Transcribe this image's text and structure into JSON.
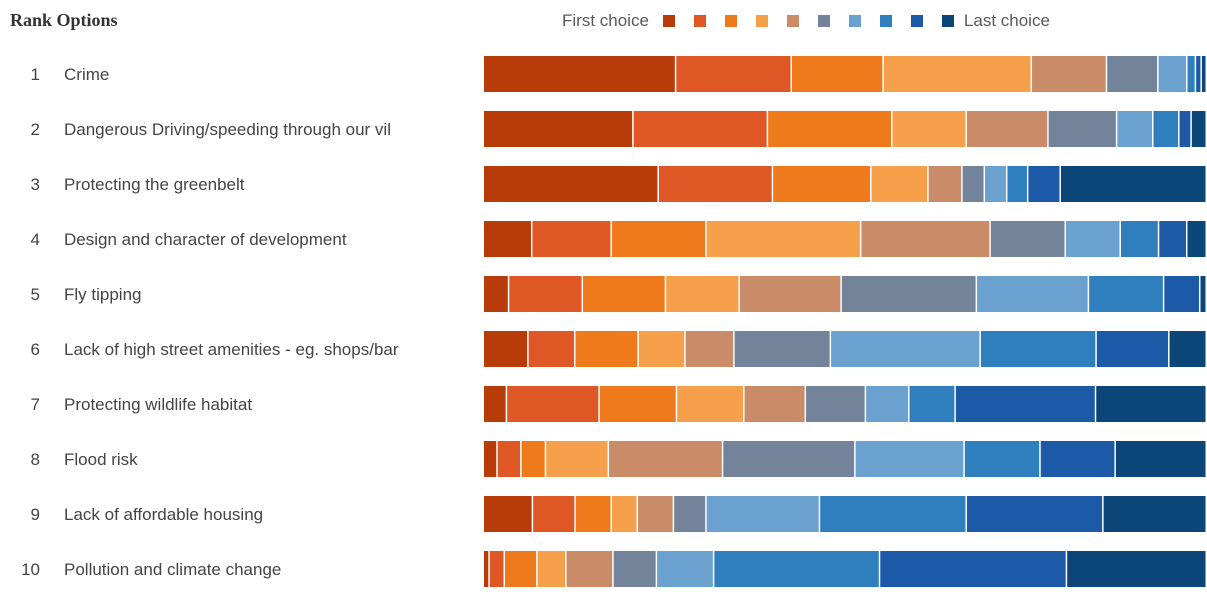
{
  "title": "Rank Options",
  "legend": {
    "first_label": "First choice",
    "last_label": "Last choice"
  },
  "colors": [
    "#b83b0a",
    "#e05726",
    "#ef7a1c",
    "#f7a04c",
    "#c98b68",
    "#73839a",
    "#6aa1cf",
    "#2f7ebd",
    "#1c5aa8",
    "#0c4578"
  ],
  "chart_data": {
    "type": "bar",
    "orientation": "horizontal",
    "stacked": true,
    "percent_stacked": true,
    "title": "Rank Options",
    "categories": [
      "Crime",
      "Dangerous Driving/speeding through our vil",
      "Protecting the greenbelt",
      "Design and character of development",
      "Fly tipping",
      "Lack of high street amenities - eg. shops/bar",
      "Protecting wildlife habitat",
      "Flood risk",
      "Lack of affordable housing",
      "Pollution and climate change"
    ],
    "ranks": [
      "1",
      "2",
      "3",
      "4",
      "5",
      "6",
      "7",
      "8",
      "9",
      "10"
    ],
    "legend_labels": [
      "First choice",
      "Last choice"
    ],
    "legend_position": "top",
    "grid": false,
    "xlim": [
      0,
      100
    ],
    "series": [
      {
        "values": [
          26.6,
          20.7,
          24.2,
          6.7,
          3.5,
          6.2,
          3.2,
          1.9,
          6.8,
          0.8
        ]
      },
      {
        "values": [
          16.0,
          18.6,
          15.8,
          11.0,
          10.2,
          6.5,
          12.8,
          3.3,
          5.9,
          2.1
        ]
      },
      {
        "values": [
          12.7,
          17.2,
          13.6,
          13.1,
          11.5,
          8.8,
          10.7,
          3.4,
          5.0,
          4.5
        ]
      },
      {
        "values": [
          20.5,
          10.3,
          7.9,
          21.4,
          10.2,
          6.5,
          9.3,
          8.7,
          3.6,
          4.0
        ]
      },
      {
        "values": [
          10.4,
          11.3,
          4.7,
          17.9,
          14.1,
          6.8,
          8.5,
          15.8,
          5.0,
          6.5
        ]
      },
      {
        "values": [
          7.1,
          9.5,
          3.1,
          10.4,
          18.7,
          13.4,
          8.3,
          18.3,
          4.5,
          6.0
        ]
      },
      {
        "values": [
          4.0,
          5.0,
          3.1,
          7.6,
          15.5,
          20.8,
          6.0,
          15.1,
          15.7,
          7.9
        ]
      },
      {
        "values": [
          1.2,
          3.6,
          2.9,
          5.3,
          10.4,
          16.1,
          6.4,
          10.5,
          20.3,
          22.9
        ]
      },
      {
        "values": [
          0.8,
          1.7,
          4.5,
          3.9,
          5.0,
          10.1,
          19.4,
          10.4,
          18.9,
          25.8
        ]
      },
      {
        "values": [
          0.7,
          2.1,
          20.2,
          2.7,
          0.9,
          5.2,
          15.3,
          12.6,
          14.3,
          19.3
        ]
      }
    ]
  }
}
